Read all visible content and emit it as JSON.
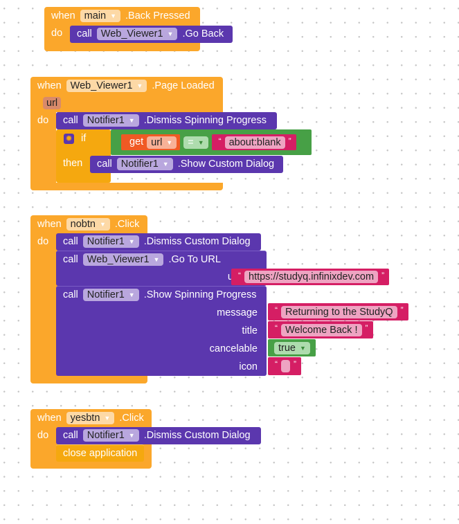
{
  "blocks": [
    {
      "when": "when",
      "component": "main",
      "event": ".Back Pressed",
      "do": "do",
      "call": {
        "call": "call",
        "component": "Web_Viewer1",
        "method": ".Go Back"
      }
    },
    {
      "when": "when",
      "component": "Web_Viewer1",
      "event": ".Page Loaded",
      "param": "url",
      "do": "do",
      "call1": {
        "call": "call",
        "component": "Notifier1",
        "method": ".Dismiss Spinning Progress"
      },
      "if": {
        "if": "if",
        "then": "then",
        "get": "get",
        "var": "url",
        "op": "=",
        "text": "about:blank",
        "call": {
          "call": "call",
          "component": "Notifier1",
          "method": ".Show Custom Dialog"
        }
      }
    },
    {
      "when": "when",
      "component": "nobtn",
      "event": ".Click",
      "do": "do",
      "call1": {
        "call": "call",
        "component": "Notifier1",
        "method": ".Dismiss Custom Dialog"
      },
      "call2": {
        "call": "call",
        "component": "Web_Viewer1",
        "method": ".Go To URL",
        "url_label": "url",
        "url": "https://studyq.infinixdev.com"
      },
      "call3": {
        "call": "call",
        "component": "Notifier1",
        "method": ".Show Spinning Progress",
        "message_label": "message",
        "message": "Returning to the StudyQ",
        "title_label": "title",
        "title": "Welcome Back !",
        "cancelable_label": "cancelable",
        "cancelable": "true",
        "icon_label": "icon",
        "icon": ""
      }
    },
    {
      "when": "when",
      "component": "yesbtn",
      "event": ".Click",
      "do": "do",
      "call": {
        "call": "call",
        "component": "Notifier1",
        "method": ".Dismiss Custom Dialog"
      },
      "close": "close application"
    }
  ],
  "quote_open": "“",
  "quote_close": "”",
  "colors": {
    "event": "#FBA72B",
    "procedure": "#5B37AE",
    "logic": "#47A046",
    "text": "#D51E64",
    "variable": "#F05A24",
    "control": "#F5A80F"
  }
}
